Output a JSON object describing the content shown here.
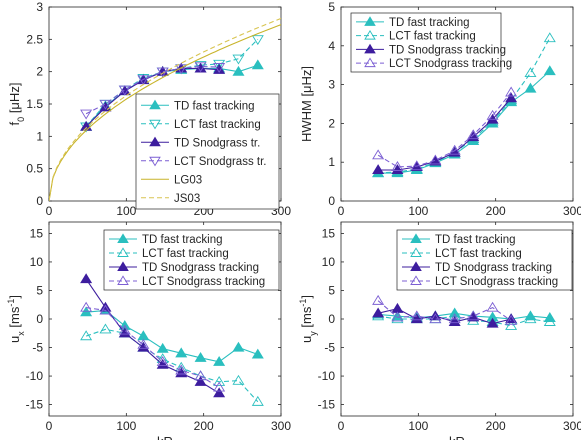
{
  "chart_data": [
    {
      "type": "line",
      "xlabel": "",
      "ylabel": "f0 [μHz]",
      "ylabel_parts": [
        "f",
        "0",
        " [",
        "μ",
        "Hz]"
      ],
      "xlim": [
        0,
        300
      ],
      "ylim": [
        0,
        3
      ],
      "xticks": [
        "0",
        "100",
        "200",
        "300"
      ],
      "yticks": [
        "0",
        "0.5",
        "1",
        "1.5",
        "2",
        "2.5",
        "3"
      ],
      "legend_position": "bottom-right",
      "series": [
        {
          "name": "TD fast tracking",
          "color": "#2ABFBF",
          "marker": "triangle-up",
          "filled": true,
          "dash": false,
          "x": [
            48,
            73,
            98,
            122,
            147,
            171,
            196,
            220,
            245,
            270
          ],
          "y": [
            1.15,
            1.47,
            1.7,
            1.88,
            2.0,
            2.03,
            2.05,
            2.05,
            2.0,
            2.1
          ]
        },
        {
          "name": "LCT fast tracking",
          "color": "#2ABFBF",
          "marker": "triangle-down",
          "filled": false,
          "dash": true,
          "x": [
            48,
            73,
            98,
            122,
            147,
            171,
            196,
            220,
            245,
            270
          ],
          "y": [
            1.15,
            1.5,
            1.72,
            1.9,
            2.0,
            2.05,
            2.1,
            2.12,
            2.2,
            2.5
          ]
        },
        {
          "name": "TD Snodgrass tr.",
          "color": "#3D1D9E",
          "marker": "triangle-up",
          "filled": true,
          "dash": false,
          "x": [
            48,
            73,
            98,
            122,
            147,
            171,
            196,
            220
          ],
          "y": [
            1.15,
            1.45,
            1.7,
            1.87,
            2.0,
            2.05,
            2.05,
            2.03
          ]
        },
        {
          "name": "LCT Snodgrass tr.",
          "color": "#7C5FD3",
          "marker": "triangle-down",
          "filled": false,
          "dash": true,
          "x": [
            48,
            73,
            98,
            122,
            147,
            171,
            196,
            220
          ],
          "y": [
            1.35,
            1.5,
            1.72,
            1.88,
            2.0,
            2.05,
            2.08,
            2.07
          ]
        },
        {
          "name": "LG03",
          "color": "#C8B42A",
          "marker": "none",
          "filled": false,
          "dash": false,
          "curve": "sqrt",
          "coef": 0.1575,
          "offset": 0.0
        },
        {
          "name": "JS03",
          "color": "#D8C450",
          "marker": "none",
          "filled": false,
          "dash": true,
          "curve": "sqrt",
          "coef": 0.163,
          "offset": 0.0
        }
      ]
    },
    {
      "type": "line",
      "xlabel": "",
      "ylabel": "HWHM [μHz]",
      "ylabel_parts": [
        "HWHM [",
        "μ",
        "Hz]"
      ],
      "xlim": [
        0,
        300
      ],
      "ylim": [
        0,
        5
      ],
      "xticks": [
        "0",
        "100",
        "200",
        "300"
      ],
      "yticks": [
        "0",
        "1",
        "2",
        "3",
        "4",
        "5"
      ],
      "legend_position": "top-left",
      "series": [
        {
          "name": "TD fast tracking",
          "color": "#2ABFBF",
          "marker": "triangle-up",
          "filled": true,
          "dash": false,
          "x": [
            48,
            73,
            98,
            122,
            147,
            171,
            196,
            220,
            245,
            270
          ],
          "y": [
            0.72,
            0.72,
            0.8,
            0.98,
            1.2,
            1.55,
            2.0,
            2.55,
            2.9,
            3.35
          ]
        },
        {
          "name": "LCT fast tracking",
          "color": "#2ABFBF",
          "marker": "triangle-up",
          "filled": false,
          "dash": true,
          "x": [
            48,
            73,
            98,
            122,
            147,
            171,
            196,
            220,
            245,
            270
          ],
          "y": [
            0.72,
            0.75,
            0.82,
            1.0,
            1.25,
            1.6,
            2.05,
            2.6,
            3.3,
            4.2
          ]
        },
        {
          "name": "TD Snodgrass tracking",
          "color": "#3D1D9E",
          "marker": "triangle-up",
          "filled": true,
          "dash": false,
          "x": [
            48,
            73,
            98,
            122,
            147,
            171,
            196,
            220
          ],
          "y": [
            0.8,
            0.8,
            0.88,
            1.02,
            1.25,
            1.65,
            2.1,
            2.65
          ]
        },
        {
          "name": "LCT Snodgrass tracking",
          "color": "#7C5FD3",
          "marker": "triangle-up",
          "filled": false,
          "dash": true,
          "x": [
            48,
            73,
            98,
            122,
            147,
            171,
            196,
            220
          ],
          "y": [
            1.18,
            0.88,
            0.9,
            1.05,
            1.3,
            1.7,
            2.2,
            2.8
          ]
        }
      ]
    },
    {
      "type": "line",
      "xlabel": "kR",
      "ylabel": "ux [ms-1]",
      "ylabel_parts": [
        "u",
        "x",
        " [ms",
        "-1",
        "]"
      ],
      "xlim": [
        0,
        300
      ],
      "ylim": [
        -17,
        17
      ],
      "xticks": [
        "0",
        "100",
        "200",
        "300"
      ],
      "yticks": [
        "-15",
        "-10",
        "-5",
        "0",
        "5",
        "10",
        "15"
      ],
      "ytick_values": [
        -15,
        -10,
        -5,
        0,
        5,
        10,
        15
      ],
      "legend_position": "top-right",
      "series": [
        {
          "name": "TD fast tracking",
          "color": "#2ABFBF",
          "marker": "triangle-up",
          "filled": true,
          "dash": false,
          "x": [
            48,
            73,
            98,
            122,
            147,
            171,
            196,
            220,
            245,
            270
          ],
          "y": [
            1.2,
            1.5,
            -1.2,
            -3.0,
            -5.2,
            -6.0,
            -6.8,
            -7.5,
            -5.0,
            -6.2
          ]
        },
        {
          "name": "LCT fast tracking",
          "color": "#2ABFBF",
          "marker": "triangle-up",
          "filled": false,
          "dash": true,
          "x": [
            48,
            73,
            98,
            122,
            147,
            171,
            196,
            220,
            245,
            270
          ],
          "y": [
            -3.0,
            -1.8,
            -2.5,
            -5.0,
            -7.0,
            -8.5,
            -10.0,
            -11.0,
            -10.8,
            -14.5
          ]
        },
        {
          "name": "TD Snodgrass tracking",
          "color": "#3D1D9E",
          "marker": "triangle-up",
          "filled": true,
          "dash": false,
          "x": [
            48,
            73,
            98,
            122,
            147,
            171,
            196,
            220
          ],
          "y": [
            7.0,
            2.0,
            -2.5,
            -5.0,
            -8.0,
            -9.5,
            -11.0,
            -13.0
          ]
        },
        {
          "name": "LCT Snodgrass tracking",
          "color": "#7C5FD3",
          "marker": "triangle-up",
          "filled": false,
          "dash": true,
          "x": [
            48,
            73,
            98,
            122,
            147,
            171,
            196,
            220
          ],
          "y": [
            2.0,
            1.5,
            -2.0,
            -4.5,
            -7.5,
            -9.0,
            -10.0,
            -12.0
          ]
        }
      ]
    },
    {
      "type": "line",
      "xlabel": "kR",
      "ylabel": "uy [ms-1]",
      "ylabel_parts": [
        "u",
        "y",
        " [ms",
        "-1",
        "]"
      ],
      "xlim": [
        0,
        300
      ],
      "ylim": [
        -17,
        17
      ],
      "xticks": [
        "0",
        "100",
        "200",
        "300"
      ],
      "yticks": [
        "-15",
        "-10",
        "-5",
        "0",
        "5",
        "10",
        "15"
      ],
      "ytick_values": [
        -15,
        -10,
        -5,
        0,
        5,
        10,
        15
      ],
      "legend_position": "top-right",
      "series": [
        {
          "name": "TD fast tracking",
          "color": "#2ABFBF",
          "marker": "triangle-up",
          "filled": true,
          "dash": false,
          "x": [
            48,
            73,
            98,
            122,
            147,
            171,
            196,
            220,
            245,
            270
          ],
          "y": [
            0.8,
            0.5,
            0.2,
            0.5,
            1.0,
            0.5,
            0.3,
            0.0,
            0.5,
            0.2
          ]
        },
        {
          "name": "LCT fast tracking",
          "color": "#2ABFBF",
          "marker": "triangle-up",
          "filled": false,
          "dash": true,
          "x": [
            48,
            73,
            98,
            122,
            147,
            171,
            196,
            220,
            245,
            270
          ],
          "y": [
            0.5,
            0.0,
            0.0,
            0.0,
            0.5,
            -0.3,
            -0.5,
            -1.2,
            0.0,
            -0.5
          ]
        },
        {
          "name": "TD Snodgrass tracking",
          "color": "#3D1D9E",
          "marker": "triangle-up",
          "filled": true,
          "dash": false,
          "x": [
            48,
            73,
            98,
            122,
            147,
            171,
            196,
            220
          ],
          "y": [
            1.0,
            1.8,
            0.0,
            0.5,
            -0.5,
            0.3,
            -0.8,
            0.0
          ]
        },
        {
          "name": "LCT Snodgrass tracking",
          "color": "#7C5FD3",
          "marker": "triangle-up",
          "filled": false,
          "dash": true,
          "x": [
            48,
            73,
            98,
            122,
            147,
            171,
            196,
            220
          ],
          "y": [
            3.2,
            0.3,
            0.5,
            0.0,
            0.0,
            0.5,
            2.0,
            -0.3
          ]
        }
      ]
    }
  ]
}
